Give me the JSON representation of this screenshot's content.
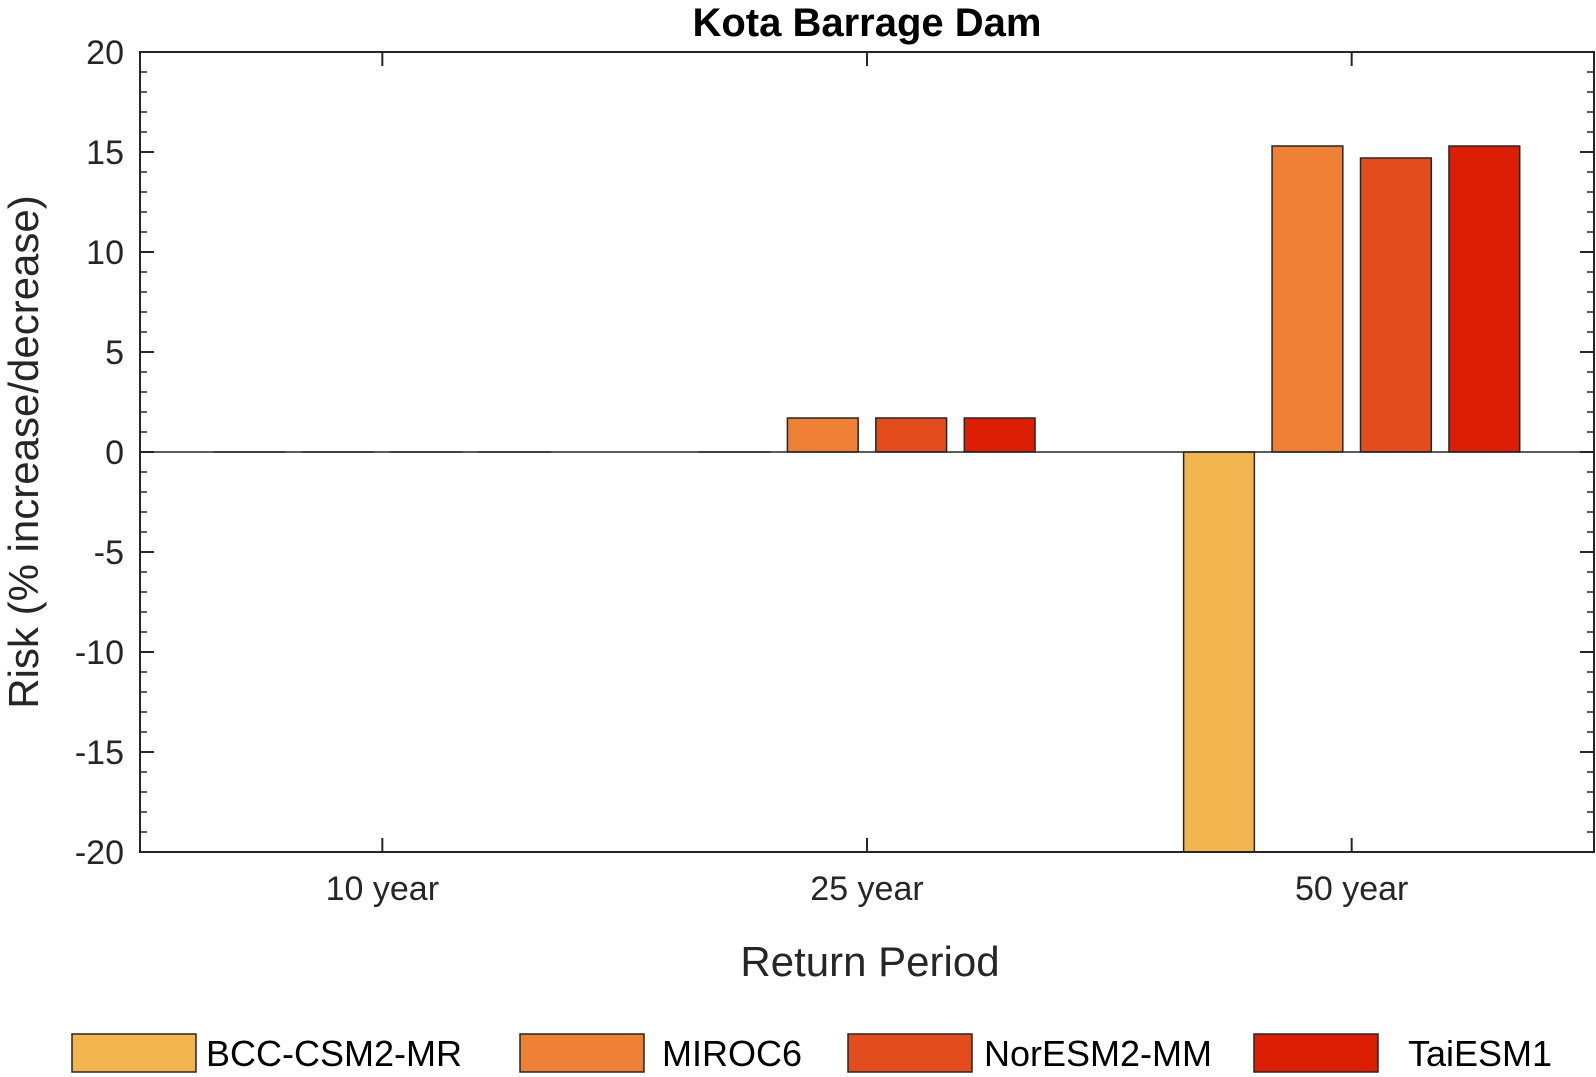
{
  "chart_data": {
    "type": "bar",
    "title": "Kota Barrage Dam",
    "xlabel": "Return Period",
    "ylabel": "Risk (% increase/decrease)",
    "categories": [
      "10 year",
      "25 year",
      "50 year"
    ],
    "ylim": [
      -20,
      20
    ],
    "yticks": [
      -20,
      -15,
      -10,
      -5,
      0,
      5,
      10,
      15,
      20
    ],
    "legend_position": "bottom",
    "grid": false,
    "series": [
      {
        "name": "BCC-CSM2-MR",
        "color": "#F2B44E",
        "values": [
          0,
          0,
          -20
        ]
      },
      {
        "name": "MIROC6",
        "color": "#EE8036",
        "values": [
          0,
          1.7,
          15.3
        ]
      },
      {
        "name": "NorESM2-MM",
        "color": "#E34C1D",
        "values": [
          0,
          1.7,
          14.7
        ]
      },
      {
        "name": "TaiESM1",
        "color": "#DC1E05",
        "values": [
          0,
          1.7,
          15.3
        ]
      }
    ]
  }
}
